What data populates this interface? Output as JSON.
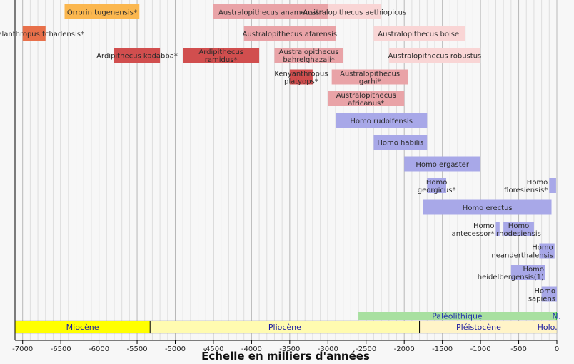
{
  "chart_data": {
    "type": "timeline",
    "title": "",
    "xlabel": "Échelle en milliers d'années",
    "xlim": [
      -7100,
      0
    ],
    "x_ticks": [
      -7000,
      -6500,
      -6000,
      -5500,
      -5000,
      -4500,
      -4000,
      -3500,
      -3000,
      -2500,
      -2000,
      -1500,
      -1000,
      -500,
      0
    ],
    "x_tick_labels": [
      "-7000",
      "-6500",
      "-6000",
      "-5500",
      "-5000",
      "-4500",
      "-4000",
      "-3500",
      "-3000",
      "-2500",
      "-2000",
      "-1500",
      "-1000",
      "-500",
      "0"
    ],
    "species": [
      {
        "name": [
          "Orrorin tugenensis*"
        ],
        "start": -6450,
        "end": -5470,
        "row": 0,
        "color": "#fbb74f",
        "label_at": "inside"
      },
      {
        "name": [
          "Australopithecus anamensis*"
        ],
        "start": -4500,
        "end": -3000,
        "row": 0,
        "color": "#e9a3a7",
        "label_at": "inside"
      },
      {
        "name": [
          "Australopithecus aethiopicus"
        ],
        "start": -3000,
        "end": -2300,
        "row": 0,
        "color": "#f9d5d5",
        "label_at": "inside"
      },
      {
        "name": [
          "Sahelanthropus tchadensis*"
        ],
        "start": -7000,
        "end": -6700,
        "row": 1,
        "color": "#e8704a",
        "label_at": "inside"
      },
      {
        "name": [
          "Australopithecus afarensis"
        ],
        "start": -4100,
        "end": -2900,
        "row": 1,
        "color": "#e9a3a7",
        "label_at": "inside"
      },
      {
        "name": [
          "Australopithecus boisei"
        ],
        "start": -2400,
        "end": -1200,
        "row": 1,
        "color": "#f9d5d5",
        "label_at": "inside"
      },
      {
        "name": [
          "Ardipithecus kadabba*"
        ],
        "start": -5800,
        "end": -5200,
        "row": 2,
        "color": "#d14e4e",
        "label_at": "inside"
      },
      {
        "name": [
          "Ardipithecus",
          "ramidus*"
        ],
        "start": -4900,
        "end": -3900,
        "row": 2,
        "color": "#d14e4e",
        "label_at": "inside"
      },
      {
        "name": [
          "Australopithecus",
          "bahrelghazali*"
        ],
        "start": -3700,
        "end": -2800,
        "row": 2,
        "color": "#e9a3a7",
        "label_at": "inside"
      },
      {
        "name": [
          "Australopithecus robustus"
        ],
        "start": -2200,
        "end": -1000,
        "row": 2,
        "color": "#f9d5d5",
        "label_at": "inside"
      },
      {
        "name": [
          "Kenyanthropus",
          "platyops*"
        ],
        "start": -3500,
        "end": -3200,
        "row": 3,
        "color": "#d14e4e",
        "label_at": "center"
      },
      {
        "name": [
          "Australopithecus",
          "garhi*"
        ],
        "start": -2950,
        "end": -1950,
        "row": 3,
        "color": "#e9a3a7",
        "label_at": "inside"
      },
      {
        "name": [
          "Australopithecus",
          "africanus*"
        ],
        "start": -3000,
        "end": -2000,
        "row": 4,
        "color": "#e9a3a7",
        "label_at": "inside"
      },
      {
        "name": [
          "Homo rudolfensis"
        ],
        "start": -2900,
        "end": -1700,
        "row": 5,
        "color": "#a8a8e8",
        "label_at": "inside"
      },
      {
        "name": [
          "Homo habilis"
        ],
        "start": -2400,
        "end": -1700,
        "row": 6,
        "color": "#a8a8e8",
        "label_at": "inside"
      },
      {
        "name": [
          "Homo ergaster"
        ],
        "start": -2000,
        "end": -1000,
        "row": 7,
        "color": "#a8a8e8",
        "label_at": "inside"
      },
      {
        "name": [
          "Homo",
          "georgicus*"
        ],
        "start": -1700,
        "end": -1450,
        "row": 8,
        "color": "#a8a8e8",
        "label_at": "inside"
      },
      {
        "name": [
          "Homo",
          "floresiensis*"
        ],
        "start": -100,
        "end": -10,
        "row": 8,
        "color": "#a8a8e8",
        "label_at": "left"
      },
      {
        "name": [
          "Homo erectus"
        ],
        "start": -1750,
        "end": -70,
        "row": 9,
        "color": "#a8a8e8",
        "label_at": "inside"
      },
      {
        "name": [
          "Homo",
          "antecessor*"
        ],
        "start": -800,
        "end": -750,
        "row": 10,
        "color": "#a8a8e8",
        "label_at": "left"
      },
      {
        "name": [
          "Homo",
          "rhodesiensis"
        ],
        "start": -700,
        "end": -300,
        "row": 10,
        "color": "#a8a8e8",
        "label_at": "inside"
      },
      {
        "name": [
          "Homo",
          "neanderthalensis"
        ],
        "start": -230,
        "end": -30,
        "row": 11,
        "color": "#a8a8e8",
        "label_at": "inside-right"
      },
      {
        "name": [
          "Homo",
          "heidelbergensis(1)"
        ],
        "start": -600,
        "end": -150,
        "row": 12,
        "color": "#a8a8e8",
        "label_at": "inside-right"
      },
      {
        "name": [
          "Homo",
          "sapiens"
        ],
        "start": -200,
        "end": 0,
        "row": 13,
        "color": "#a8a8e8",
        "label_at": "inside-right"
      }
    ],
    "archaeology": [
      {
        "name": "Paléolithique",
        "start": -2600,
        "end": -12,
        "color": "#a8e0a0",
        "text_color": "#2233aa"
      },
      {
        "name": "N.",
        "start": -12,
        "end": 0,
        "color": "#33cc33",
        "text_color": "#2233aa"
      }
    ],
    "epochs": [
      {
        "name": "Miocène",
        "start": -7100,
        "end": -5330,
        "color": "#ffff00",
        "text_color": "#1a1aa0"
      },
      {
        "name": "Pliocène",
        "start": -5330,
        "end": -1800,
        "color": "#fffbb0",
        "text_color": "#1a1aa0"
      },
      {
        "name": "Pléistocène",
        "start": -1800,
        "end": -250,
        "color": "#fff4c8",
        "text_color": "#1a1aa0"
      },
      {
        "name": "Holo.",
        "start": -250,
        "end": 0,
        "color": "#fff4c8",
        "text_color": "#1a1aa0"
      }
    ],
    "grid": true
  }
}
